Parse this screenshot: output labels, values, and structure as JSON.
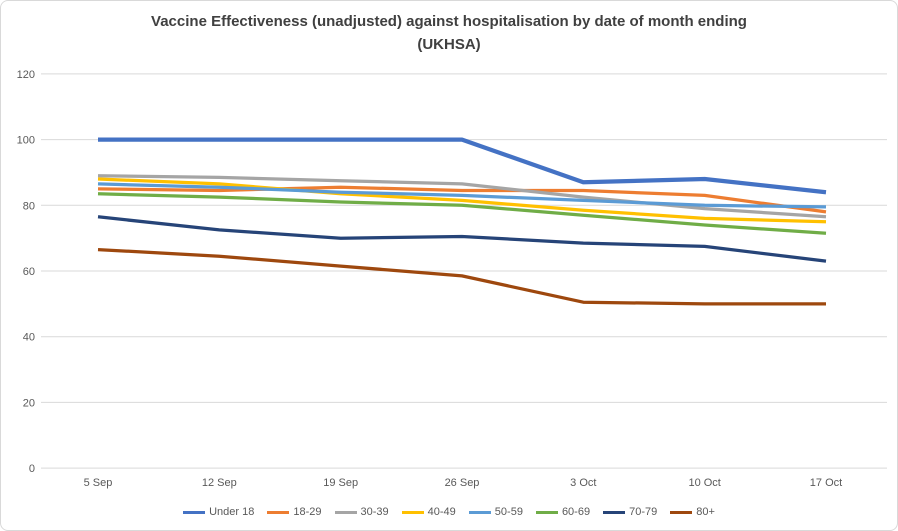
{
  "chart": {
    "title_line1": "Vaccine Effectiveness (unadjusted) against hospitalisation by date of month ending",
    "title_line2": "(UKHSA)"
  },
  "chart_data": {
    "type": "line",
    "title": "Vaccine Effectiveness (unadjusted) against hospitalisation by date of month ending (UKHSA)",
    "categories": [
      "5 Sep",
      "12 Sep",
      "19 Sep",
      "26 Sep",
      "3 Oct",
      "10 Oct",
      "17 Oct"
    ],
    "series": [
      {
        "name": "Under 18",
        "color": "#4472C4",
        "stroke_width": 4.25,
        "values": [
          100,
          100,
          100,
          100,
          87,
          88,
          84
        ]
      },
      {
        "name": "18-29",
        "color": "#ED7D31",
        "stroke_width": 3.25,
        "values": [
          85,
          84.5,
          85.5,
          84.5,
          84.5,
          83,
          78
        ]
      },
      {
        "name": "30-39",
        "color": "#A5A5A5",
        "stroke_width": 3.25,
        "values": [
          89,
          88.5,
          87.5,
          86.5,
          82.5,
          79,
          76.5
        ]
      },
      {
        "name": "40-49",
        "color": "#FFC000",
        "stroke_width": 3.25,
        "values": [
          88,
          86.5,
          83.5,
          81.5,
          78.5,
          76,
          75
        ]
      },
      {
        "name": "50-59",
        "color": "#5B9BD5",
        "stroke_width": 3.25,
        "values": [
          86.5,
          85.5,
          84,
          83,
          81.5,
          80,
          79.5
        ]
      },
      {
        "name": "60-69",
        "color": "#70AD47",
        "stroke_width": 3.25,
        "values": [
          83.5,
          82.5,
          81,
          80,
          77,
          74,
          71.5
        ]
      },
      {
        "name": "70-79",
        "color": "#264478",
        "stroke_width": 3.25,
        "values": [
          76.5,
          72.5,
          70,
          70.5,
          68.5,
          67.5,
          63
        ]
      },
      {
        "name": "80+",
        "color": "#9E480E",
        "stroke_width": 3.25,
        "values": [
          66.5,
          64.5,
          61.5,
          58.5,
          50.5,
          50,
          50
        ]
      }
    ],
    "ylim": [
      0,
      120
    ],
    "yticks": [
      0,
      20,
      40,
      60,
      80,
      100,
      120
    ],
    "grid": true,
    "legend_position": "bottom",
    "axis_text_color": "#595959",
    "title_color": "#404040",
    "gridline_color": "#D9D9D9",
    "background": "#FFFFFF",
    "border_color": "#D9D9D9"
  }
}
